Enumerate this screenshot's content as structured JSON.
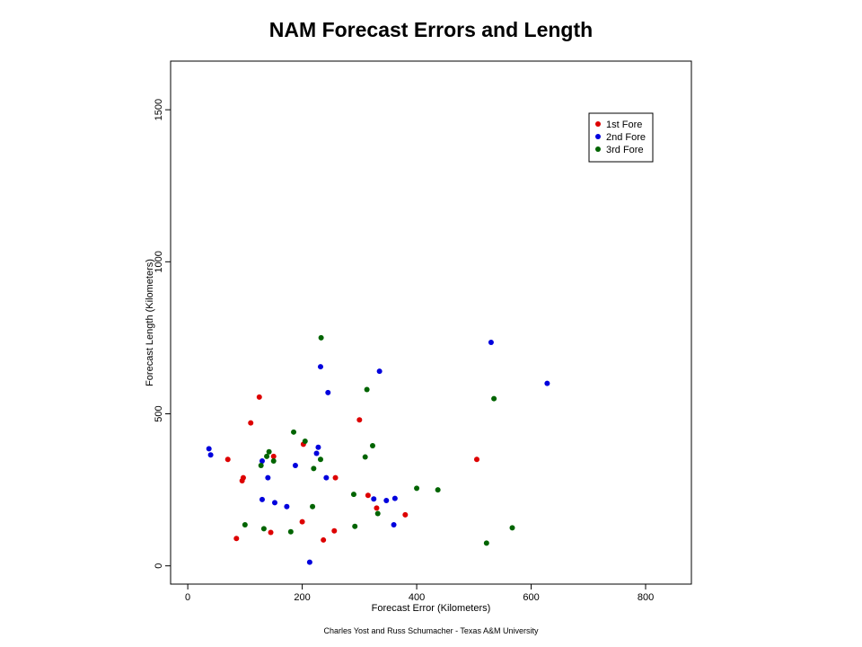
{
  "colors": {
    "series_1": "#dd0000",
    "series_2": "#0000dd",
    "series_3": "#006400"
  },
  "chart_data": {
    "type": "scatter",
    "title": "NAM Forecast Errors and Length",
    "xlabel": "Forecast Error (Kilometers)",
    "ylabel": "Forecast Length (Kilometers)",
    "xlim": [
      -30,
      880
    ],
    "ylim": [
      -60,
      1660
    ],
    "xticks": [
      0,
      200,
      400,
      600,
      800
    ],
    "yticks": [
      0,
      500,
      1000,
      1500
    ],
    "grid": false,
    "legend_position": "top-right",
    "series": [
      {
        "name": "1st Fore",
        "color": "#dd0000",
        "points": [
          [
            70,
            350
          ],
          [
            85,
            90
          ],
          [
            95,
            280
          ],
          [
            97,
            290
          ],
          [
            110,
            470
          ],
          [
            125,
            555
          ],
          [
            145,
            110
          ],
          [
            150,
            360
          ],
          [
            200,
            145
          ],
          [
            202,
            400
          ],
          [
            237,
            85
          ],
          [
            256,
            115
          ],
          [
            258,
            290
          ],
          [
            300,
            480
          ],
          [
            315,
            232
          ],
          [
            330,
            190
          ],
          [
            380,
            168
          ],
          [
            505,
            350
          ]
        ]
      },
      {
        "name": "2nd Fore",
        "color": "#0000dd",
        "points": [
          [
            37,
            385
          ],
          [
            40,
            365
          ],
          [
            130,
            345
          ],
          [
            130,
            218
          ],
          [
            140,
            290
          ],
          [
            152,
            208
          ],
          [
            173,
            195
          ],
          [
            188,
            330
          ],
          [
            213,
            12
          ],
          [
            225,
            370
          ],
          [
            228,
            390
          ],
          [
            232,
            655
          ],
          [
            242,
            290
          ],
          [
            245,
            570
          ],
          [
            325,
            220
          ],
          [
            335,
            640
          ],
          [
            347,
            215
          ],
          [
            360,
            135
          ],
          [
            362,
            222
          ],
          [
            530,
            735
          ],
          [
            628,
            600
          ]
        ]
      },
      {
        "name": "3rd Fore",
        "color": "#006400",
        "points": [
          [
            100,
            135
          ],
          [
            128,
            330
          ],
          [
            133,
            122
          ],
          [
            138,
            360
          ],
          [
            142,
            375
          ],
          [
            150,
            345
          ],
          [
            180,
            112
          ],
          [
            185,
            440
          ],
          [
            205,
            410
          ],
          [
            218,
            195
          ],
          [
            220,
            320
          ],
          [
            232,
            350
          ],
          [
            233,
            750
          ],
          [
            290,
            235
          ],
          [
            292,
            130
          ],
          [
            310,
            358
          ],
          [
            313,
            580
          ],
          [
            323,
            395
          ],
          [
            332,
            172
          ],
          [
            400,
            255
          ],
          [
            437,
            250
          ],
          [
            522,
            75
          ],
          [
            535,
            550
          ],
          [
            567,
            125
          ]
        ]
      }
    ]
  },
  "footer": "Charles Yost and Russ Schumacher - Texas A&M University"
}
